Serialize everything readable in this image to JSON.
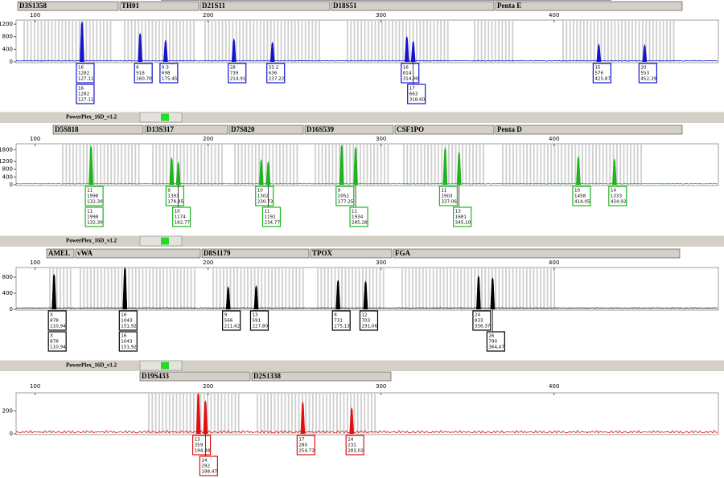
{
  "chart_data": [
    {
      "type": "electropherogram",
      "markers": [
        "D3S1358",
        "TH01",
        "D21S11",
        "D18S51",
        "Penta E"
      ],
      "xlim": [
        89,
        495
      ],
      "xticks": [
        100,
        200,
        300,
        400
      ],
      "ylim": [
        0,
        1330
      ],
      "yticks": [
        0,
        400,
        800,
        1200
      ],
      "color": "#1414cc",
      "alleles": [
        "16",
        "6",
        "9.3",
        "28",
        "33.2",
        "16",
        "17",
        "15",
        "20"
      ],
      "heights": [
        1282,
        918,
        698,
        739,
        636,
        814,
        663,
        576,
        553
      ],
      "sizes": [
        127.11,
        160.7,
        175.45,
        214.91,
        237.22,
        314.9,
        318.6,
        425.87,
        452.39
      ],
      "size_labels": [
        "127,11",
        "160,70",
        "175,45",
        "214,91",
        "237,22",
        "314,90",
        "318,60",
        "425,87",
        "452,39"
      ]
    },
    {
      "type": "electropherogram",
      "header": "PowerPlex_16D_v1.2",
      "markers": [
        "D5S818",
        "D13S317",
        "D7S820",
        "D16S539",
        "CSF1PO",
        "Penta D"
      ],
      "xlim": [
        89,
        495
      ],
      "xticks": [
        100,
        200,
        300,
        400
      ],
      "ylim": [
        0,
        2100
      ],
      "yticks": [
        0,
        400,
        800,
        1200,
        1800
      ],
      "color": "#1fb31f",
      "alleles": [
        "11",
        "9",
        "10",
        "10",
        "11",
        "9",
        "11",
        "11",
        "13",
        "10",
        "14"
      ],
      "heights": [
        1998,
        1393,
        1174,
        1302,
        1192,
        2052,
        1934,
        1903,
        1681,
        1458,
        1333
      ],
      "sizes": [
        132.3,
        178.95,
        182.77,
        230.73,
        234.77,
        277.25,
        285.28,
        337.06,
        345.1,
        414.05,
        434.92
      ],
      "size_labels": [
        "132,30",
        "178,95",
        "182,77",
        "230,73",
        "234,77",
        "277,25",
        "285,28",
        "337,06",
        "345,10",
        "414,05",
        "434,92"
      ]
    },
    {
      "type": "electropherogram",
      "header": "PowerPlex_16D_v1.2",
      "markers": [
        "AMEL",
        "vWA",
        "D8S1179",
        "TPOX",
        "FGA"
      ],
      "xlim": [
        89,
        495
      ],
      "xticks": [
        100,
        200,
        300,
        400
      ],
      "ylim": [
        0,
        1040
      ],
      "yticks": [
        0,
        400,
        800
      ],
      "color": "#000000",
      "alleles": [
        "X",
        "16",
        "9",
        "13",
        "8",
        "12",
        "24",
        "26"
      ],
      "heights": [
        878,
        1043,
        566,
        591,
        731,
        703,
        833,
        790
      ],
      "sizes": [
        110.94,
        151.92,
        211.62,
        227.8,
        275.13,
        291.06,
        356.37,
        364.47
      ],
      "size_labels": [
        "110,94",
        "151,92",
        "211,62",
        "227,80",
        "275,13",
        "291,06",
        "356,37",
        "364,47"
      ]
    },
    {
      "type": "electropherogram",
      "header": "PowerPlex_16D_v1.2",
      "markers": [
        "D19S433",
        "D2S1338"
      ],
      "xlim": [
        89,
        495
      ],
      "xticks": [
        100,
        200,
        300,
        400
      ],
      "ylim": [
        0,
        360
      ],
      "yticks": [
        0,
        200
      ],
      "color": "#e01010",
      "alleles": [
        "13",
        "14",
        "17",
        "24"
      ],
      "heights": [
        359,
        292,
        280,
        231
      ],
      "sizes": [
        194.38,
        198.47,
        254.73,
        283.02
      ],
      "size_labels": [
        "194,38",
        "198,47",
        "254,73",
        "283,02"
      ]
    }
  ]
}
